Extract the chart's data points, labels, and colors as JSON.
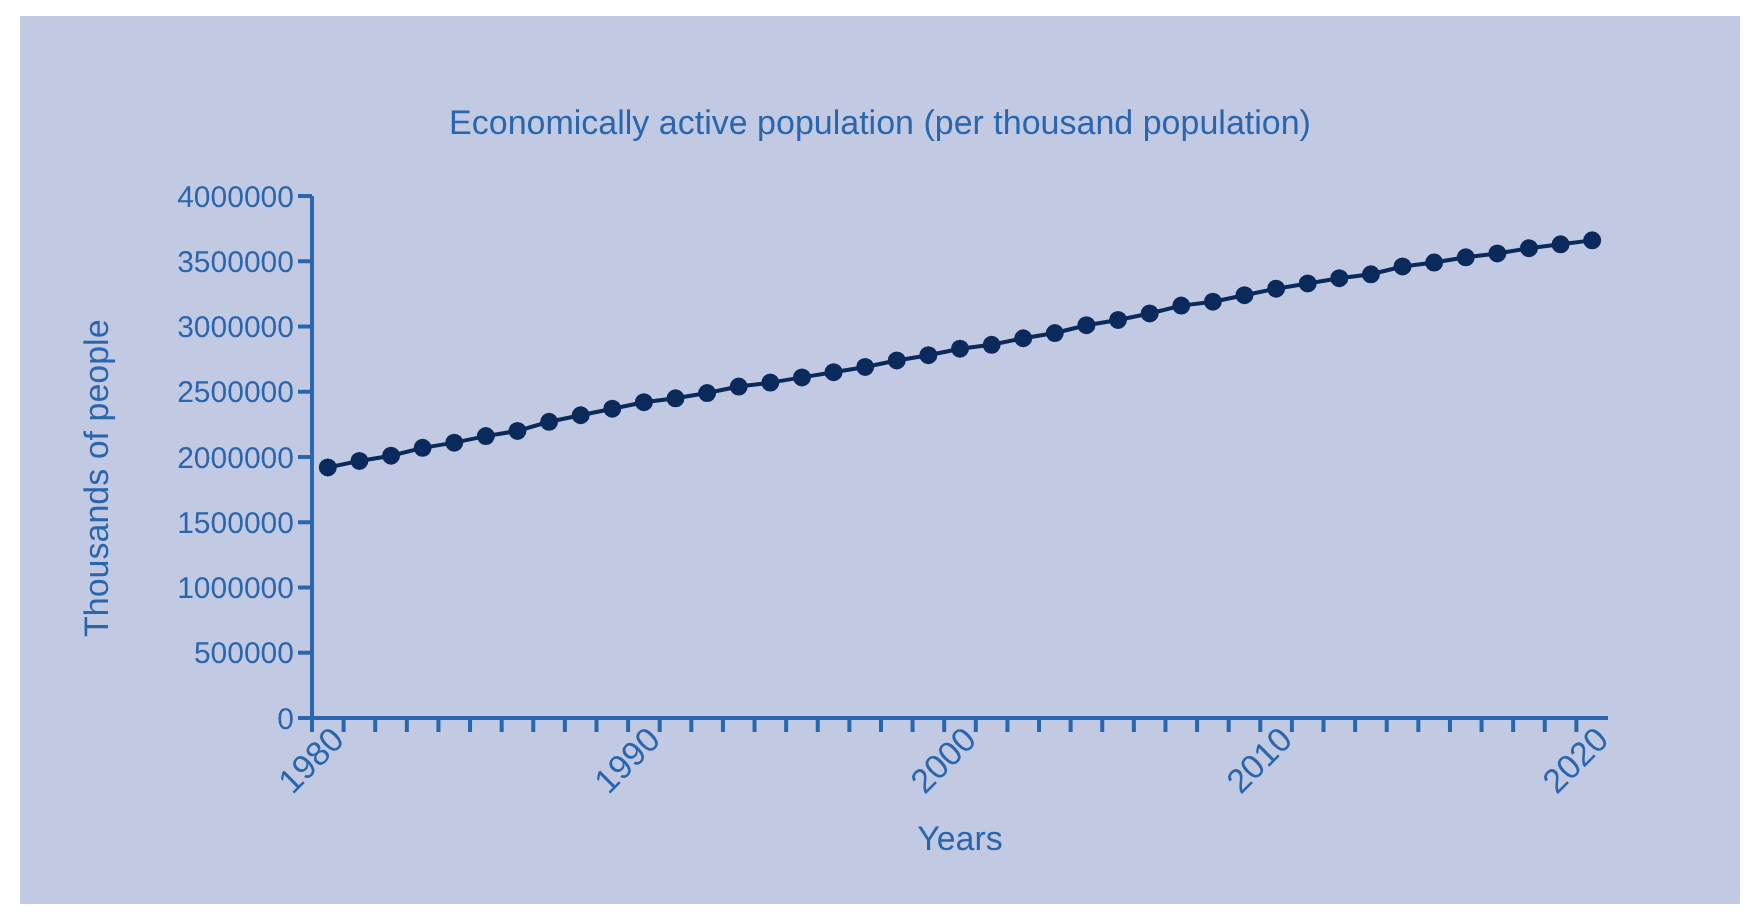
{
  "chart_data": {
    "type": "line",
    "title": "Economically active population (per thousand population)",
    "xlabel": "Years",
    "ylabel": "Thousands of people",
    "x": [
      1980.5,
      1981.5,
      1982.5,
      1983.5,
      1984.5,
      1985.5,
      1986.5,
      1987.5,
      1988.5,
      1989.5,
      1990.5,
      1991.5,
      1992.5,
      1993.5,
      1994.5,
      1995.5,
      1996.5,
      1997.5,
      1998.5,
      1999.5,
      2000.5,
      2001.5,
      2002.5,
      2003.5,
      2004.5,
      2005.5,
      2006.5,
      2007.5,
      2008.5,
      2009.5,
      2010.5,
      2011.5,
      2012.5,
      2013.5,
      2014.5,
      2015.5,
      2016.5,
      2017.5,
      2018.5,
      2019.5,
      2020.5
    ],
    "series": [
      {
        "color": "#0b2a5c",
        "values": [
          1920000,
          1970000,
          2010000,
          2070000,
          2110000,
          2160000,
          2200000,
          2270000,
          2320000,
          2370000,
          2420000,
          2450000,
          2490000,
          2540000,
          2570000,
          2610000,
          2650000,
          2690000,
          2740000,
          2780000,
          2830000,
          2860000,
          2910000,
          2950000,
          3010000,
          3050000,
          3100000,
          3160000,
          3190000,
          3240000,
          3290000,
          3330000,
          3370000,
          3400000,
          3460000,
          3490000,
          3530000,
          3560000,
          3600000,
          3630000,
          3660000
        ]
      }
    ],
    "xlim": [
      1980,
      2021
    ],
    "xticks": [
      1980,
      {
        "value": 1981,
        "label": null
      },
      {
        "value": 1982,
        "label": null
      },
      {
        "value": 1983,
        "label": null
      },
      {
        "value": 1984,
        "label": null
      },
      {
        "value": 1985,
        "label": null
      },
      {
        "value": 1986,
        "label": null
      },
      {
        "value": 1987,
        "label": null
      },
      {
        "value": 1988,
        "label": null
      },
      {
        "value": 1989,
        "label": null
      },
      1990,
      {
        "value": 1991,
        "label": null
      },
      {
        "value": 1992,
        "label": null
      },
      {
        "value": 1993,
        "label": null
      },
      {
        "value": 1994,
        "label": null
      },
      {
        "value": 1995,
        "label": null
      },
      {
        "value": 1996,
        "label": null
      },
      {
        "value": 1997,
        "label": null
      },
      {
        "value": 1998,
        "label": null
      },
      {
        "value": 1999,
        "label": null
      },
      2000,
      {
        "value": 2001,
        "label": null
      },
      {
        "value": 2002,
        "label": null
      },
      {
        "value": 2003,
        "label": null
      },
      {
        "value": 2004,
        "label": null
      },
      {
        "value": 2005,
        "label": null
      },
      {
        "value": 2006,
        "label": null
      },
      {
        "value": 2007,
        "label": null
      },
      {
        "value": 2008,
        "label": null
      },
      {
        "value": 2009,
        "label": null
      },
      2010,
      {
        "value": 2011,
        "label": null
      },
      {
        "value": 2012,
        "label": null
      },
      {
        "value": 2013,
        "label": null
      },
      {
        "value": 2014,
        "label": null
      },
      {
        "value": 2015,
        "label": null
      },
      {
        "value": 2016,
        "label": null
      },
      {
        "value": 2017,
        "label": null
      },
      {
        "value": 2018,
        "label": null
      },
      {
        "value": 2019,
        "label": null
      },
      2020
    ],
    "ylim": [
      0,
      4000000
    ],
    "yticks": [
      0,
      500000,
      1000000,
      1500000,
      2000000,
      2500000,
      3000000,
      3500000,
      4000000
    ],
    "grid": false,
    "legend": false,
    "marker": "circle",
    "line_style": "solid"
  }
}
